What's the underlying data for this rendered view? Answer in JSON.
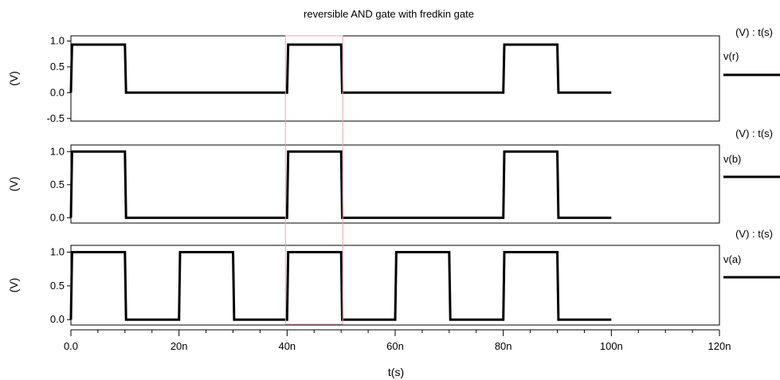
{
  "chart_data": {
    "type": "line",
    "title": "reversible AND gate with fredkin gate",
    "xlabel": "t(s)",
    "xlim": [
      0,
      120
    ],
    "x_ticks": [
      {
        "value": 0,
        "label": "0.0"
      },
      {
        "value": 20,
        "label": "20n"
      },
      {
        "value": 40,
        "label": "40n"
      },
      {
        "value": 60,
        "label": "60n"
      },
      {
        "value": 80,
        "label": "80n"
      },
      {
        "value": 100,
        "label": "100n"
      },
      {
        "value": 120,
        "label": "120n"
      }
    ],
    "highlight_box": {
      "x_start": 40,
      "x_end": 50,
      "color": "#f0a0b0"
    },
    "line_color": "#000000",
    "panels": [
      {
        "ylabel": "(V)",
        "ylim": [
          -0.5,
          1.0
        ],
        "y_ticks": [
          {
            "value": 1.0,
            "label": "1.0"
          },
          {
            "value": 0.5,
            "label": "0.5"
          },
          {
            "value": 0.0,
            "label": "0.0"
          },
          {
            "value": -0.5,
            "label": "-0.5"
          }
        ],
        "header": "(V) : t(s)",
        "series": [
          {
            "name": "v(r)",
            "x": [
              0,
              0.2,
              10,
              10.2,
              40,
              40.2,
              50,
              50.2,
              80,
              80.2,
              90,
              90.2,
              100
            ],
            "y": [
              0,
              0.93,
              0.93,
              0,
              0,
              0.93,
              0.93,
              0,
              0,
              0.93,
              0.93,
              0,
              0
            ]
          }
        ]
      },
      {
        "ylabel": "(V)",
        "ylim": [
          -0.05,
          1.05
        ],
        "y_ticks": [
          {
            "value": 1.0,
            "label": "1.0"
          },
          {
            "value": 0.5,
            "label": "0.5"
          },
          {
            "value": 0.0,
            "label": "0.0"
          }
        ],
        "header": "(V) : t(s)",
        "series": [
          {
            "name": "v(b)",
            "x": [
              0,
              0.2,
              10,
              10.2,
              40,
              40.2,
              50,
              50.2,
              80,
              80.2,
              90,
              90.2,
              100
            ],
            "y": [
              0,
              1.0,
              1.0,
              0,
              0,
              1.0,
              1.0,
              0,
              0,
              1.0,
              1.0,
              0,
              0
            ]
          }
        ]
      },
      {
        "ylabel": "(V)",
        "ylim": [
          -0.05,
          1.05
        ],
        "y_ticks": [
          {
            "value": 1.0,
            "label": "1.0"
          },
          {
            "value": 0.5,
            "label": "0.5"
          },
          {
            "value": 0.0,
            "label": "0.0"
          }
        ],
        "header": "(V) : t(s)",
        "series": [
          {
            "name": "v(a)",
            "x": [
              0,
              0.2,
              10,
              10.2,
              20,
              20.2,
              30,
              30.2,
              40,
              40.2,
              50,
              50.2,
              60,
              60.2,
              70,
              70.2,
              80,
              80.2,
              90,
              90.2,
              100
            ],
            "y": [
              0,
              1.0,
              1.0,
              0,
              0,
              1.0,
              1.0,
              0,
              0,
              1.0,
              1.0,
              0,
              0,
              1.0,
              1.0,
              0,
              0,
              1.0,
              1.0,
              0,
              0
            ]
          }
        ]
      }
    ]
  }
}
